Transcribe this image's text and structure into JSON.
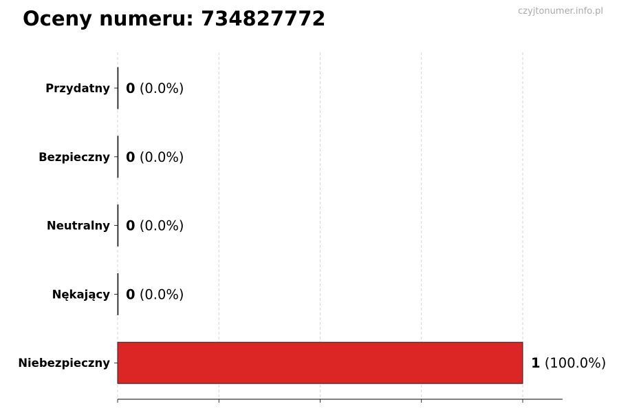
{
  "title": "Oceny numeru: 734827772",
  "watermark": "czyjtonumer.info.pl",
  "colors": {
    "bar": "#dc2626",
    "edge": "#222222",
    "grid": "#cccccc"
  },
  "chart_data": {
    "type": "bar",
    "orientation": "horizontal",
    "title": "Oceny numeru: 734827772",
    "categories": [
      "Przydatny",
      "Bezpieczny",
      "Neutralny",
      "Nękający",
      "Niebezpieczny"
    ],
    "values": [
      0,
      0,
      0,
      0,
      1
    ],
    "labels": [
      {
        "count": "0",
        "pct": "(0.0%)"
      },
      {
        "count": "0",
        "pct": "(0.0%)"
      },
      {
        "count": "0",
        "pct": "(0.0%)"
      },
      {
        "count": "0",
        "pct": "(0.0%)"
      },
      {
        "count": "1",
        "pct": "(100.0%)"
      }
    ],
    "xlim": [
      0,
      1.1
    ],
    "xticks": [
      0,
      0.25,
      0.5,
      0.75,
      1
    ],
    "xtick_labels_shown": false,
    "grid": "x-dashed"
  }
}
